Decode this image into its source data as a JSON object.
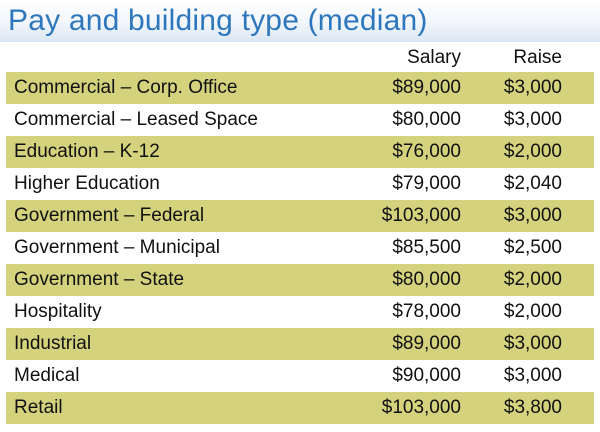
{
  "chart_data": {
    "type": "table",
    "title": "Pay and building type (median)",
    "columns": [
      "Salary",
      "Raise"
    ],
    "rows": [
      {
        "building_type": "Commercial – Corp. Office",
        "salary": "$89,000",
        "raise": "$3,000"
      },
      {
        "building_type": "Commercial – Leased Space",
        "salary": "$80,000",
        "raise": "$3,000"
      },
      {
        "building_type": "Education – K-12",
        "salary": "$76,000",
        "raise": "$2,000"
      },
      {
        "building_type": "Higher Education",
        "salary": "$79,000",
        "raise": "$2,040"
      },
      {
        "building_type": "Government – Federal",
        "salary": "$103,000",
        "raise": "$3,000"
      },
      {
        "building_type": "Government – Municipal",
        "salary": "$85,500",
        "raise": "$2,500"
      },
      {
        "building_type": "Government – State",
        "salary": "$80,000",
        "raise": "$2,000"
      },
      {
        "building_type": "Hospitality",
        "salary": "$78,000",
        "raise": "$2,000"
      },
      {
        "building_type": "Industrial",
        "salary": "$89,000",
        "raise": "$3,000"
      },
      {
        "building_type": "Medical",
        "salary": "$90,000",
        "raise": "$3,000"
      },
      {
        "building_type": "Retail",
        "salary": "$103,000",
        "raise": "$3,800"
      }
    ],
    "colors": {
      "title": "#2f77bd",
      "shaded_row": "#d4d27c",
      "header_gradient_end": "#d9e6f3"
    }
  }
}
